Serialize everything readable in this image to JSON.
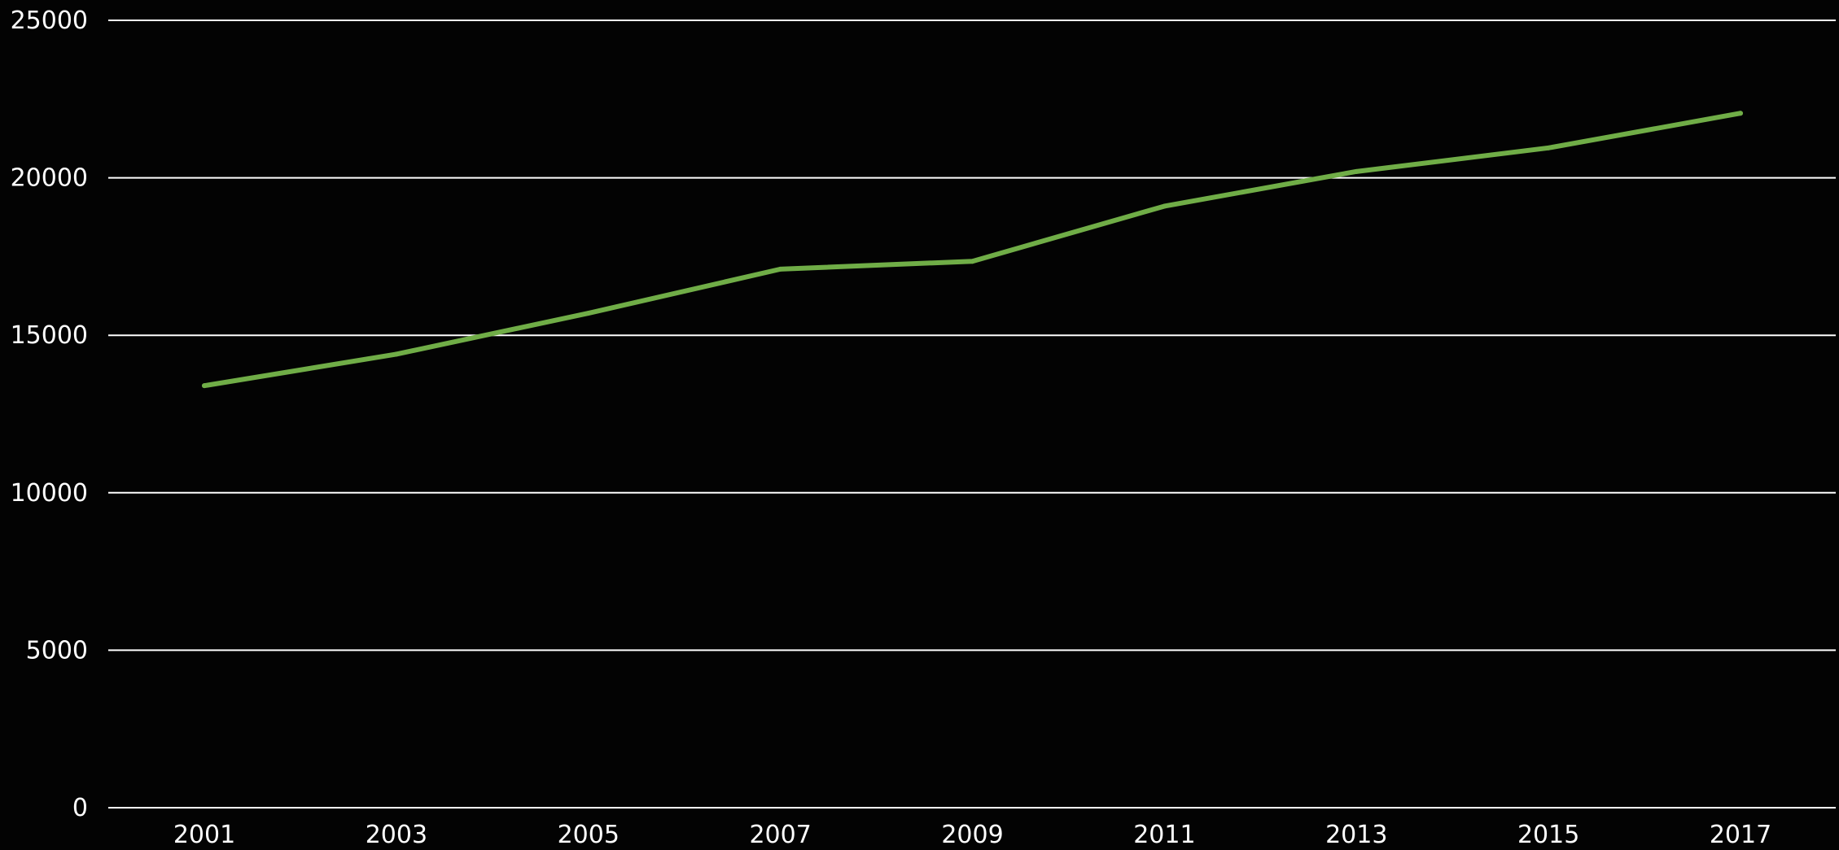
{
  "chart_data": {
    "type": "line",
    "title": "",
    "xlabel": "",
    "ylabel": "",
    "categories": [
      "2001",
      "2003",
      "2005",
      "2007",
      "2009",
      "2011",
      "2013",
      "2015",
      "2017"
    ],
    "series": [
      {
        "values": [
          13400,
          14400,
          15700,
          17100,
          17350,
          19100,
          20200,
          20950,
          22050
        ],
        "color": "#70ad47"
      }
    ],
    "ylim": [
      0,
      25000
    ],
    "yticks": [
      "0",
      "5000",
      "10000",
      "15000",
      "20000",
      "25000"
    ],
    "grid": true,
    "legend": "none",
    "background": "#030303",
    "text_color": "#ffffff",
    "grid_color": "#ffffff"
  }
}
